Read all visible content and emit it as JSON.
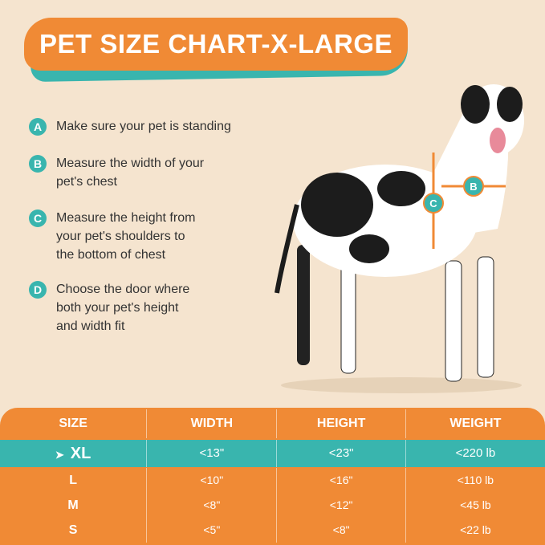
{
  "header": {
    "title": "PET SIZE CHART-X-LARGE"
  },
  "steps": [
    {
      "letter": "A",
      "lines": [
        "Make sure your pet is standing"
      ]
    },
    {
      "letter": "B",
      "lines": [
        "Measure the width of your",
        "pet's chest"
      ]
    },
    {
      "letter": "C",
      "lines": [
        "Measure the height from",
        "your pet's shoulders to",
        "the bottom of chest"
      ]
    },
    {
      "letter": "D",
      "lines": [
        "Choose the door where",
        "both your pet's height",
        "and width fit"
      ]
    }
  ],
  "diagram": {
    "height_label": "C",
    "width_label": "B"
  },
  "table": {
    "columns": [
      "SIZE",
      "WIDTH",
      "HEIGHT",
      "WEIGHT"
    ],
    "rows": [
      [
        "XL",
        "<13\"",
        "<23\"",
        "<220 lb"
      ],
      [
        "L",
        "<10\"",
        "<16\"",
        "<110 lb"
      ],
      [
        "M",
        "<8\"",
        "<12\"",
        "<45 lb"
      ],
      [
        "S",
        "<5\"",
        "<8\"",
        "<22 lb"
      ]
    ]
  }
}
